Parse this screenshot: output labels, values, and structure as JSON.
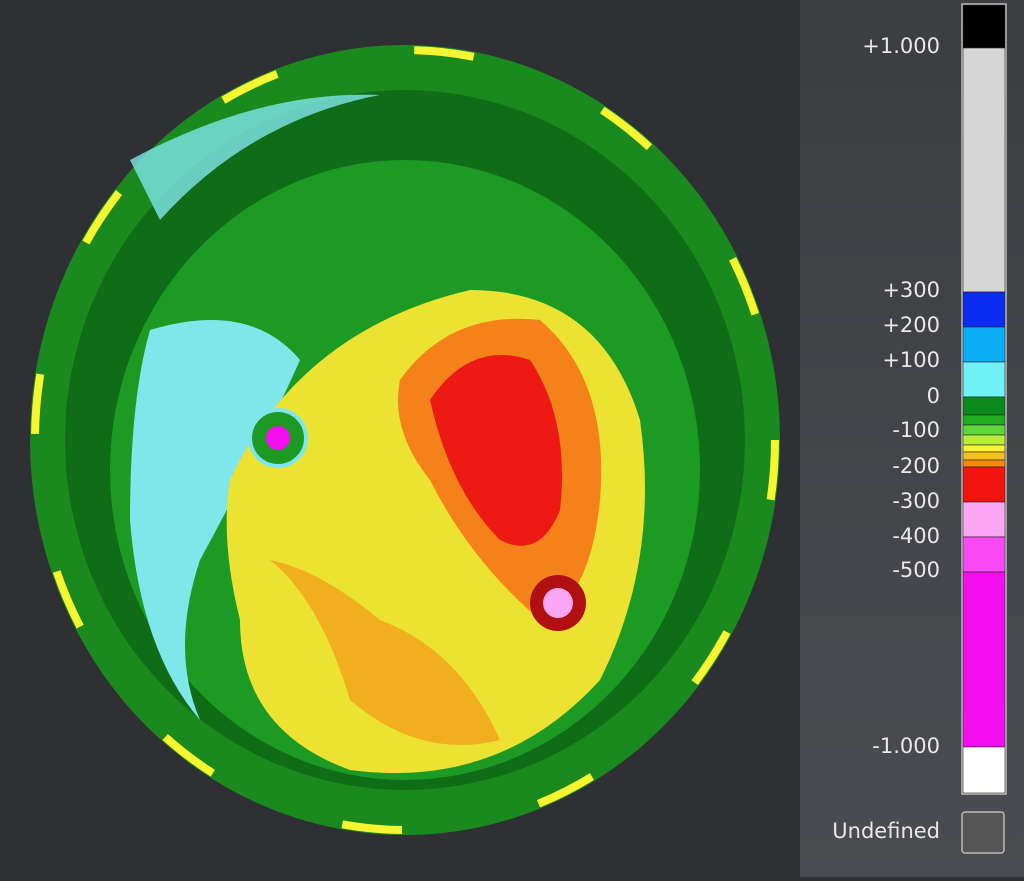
{
  "legend": {
    "labels": [
      "+1.000",
      "+300",
      "+200",
      "+100",
      "0",
      "-100",
      "-200",
      "-300",
      "-400",
      "-500",
      "-1.000"
    ],
    "colors": [
      "#000000",
      "#d6d6d6",
      "#0a2cf0",
      "#0aaef5",
      "#6ff2f5",
      "#0b8a1c",
      "#1fae1f",
      "#5fd83a",
      "#b8ee3a",
      "#f5f532",
      "#f5c11a",
      "#f58a10",
      "#f2150f",
      "#fba6f3",
      "#fb4af5",
      "#f50ef0",
      "#ffffff"
    ],
    "undefined_label": "Undefined",
    "undefined_color": "#555555"
  }
}
